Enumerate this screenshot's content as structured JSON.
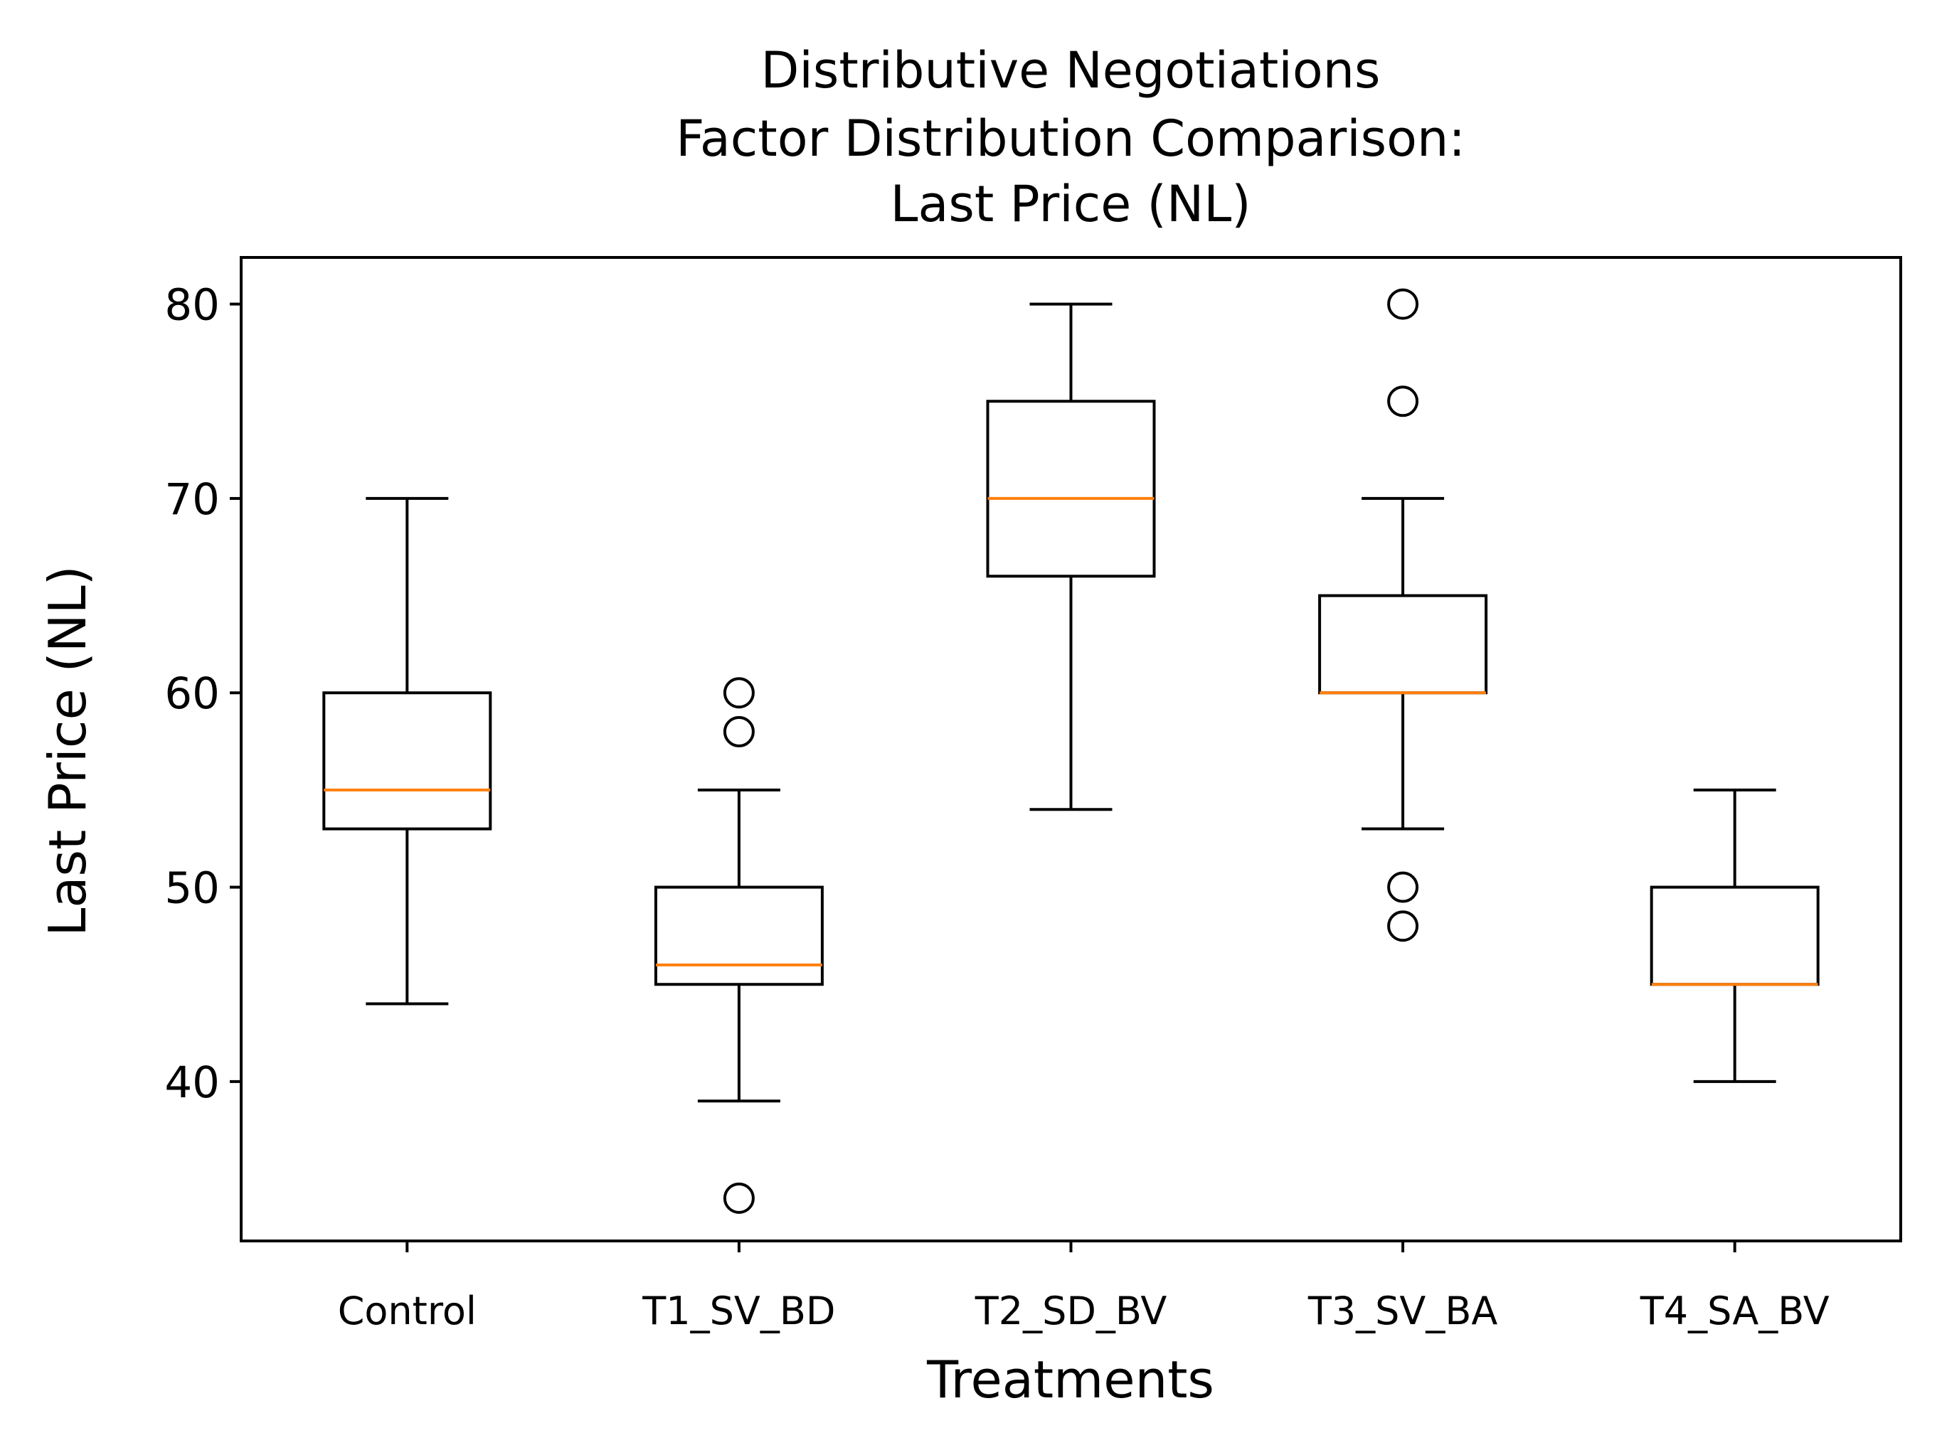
{
  "chart_data": {
    "type": "boxplot",
    "title_lines": [
      "Distributive Negotiations",
      "Factor Distribution Comparison:",
      "Last Price (NL)"
    ],
    "xlabel": "Treatments",
    "ylabel": "Last Price (NL)",
    "ylim": [
      31.8,
      82.4
    ],
    "yticks": [
      40,
      50,
      60,
      70,
      80
    ],
    "categories": [
      "Control",
      "T1_SV_BD",
      "T2_SD_BV",
      "T3_SV_BA",
      "T4_SA_BV"
    ],
    "boxes": [
      {
        "name": "Control",
        "whisker_low": 44,
        "q1": 53,
        "median": 55,
        "q3": 60,
        "whisker_high": 70,
        "outliers": []
      },
      {
        "name": "T1_SV_BD",
        "whisker_low": 39,
        "q1": 45,
        "median": 46,
        "q3": 50,
        "whisker_high": 55,
        "outliers": [
          34,
          58,
          60
        ]
      },
      {
        "name": "T2_SD_BV",
        "whisker_low": 54,
        "q1": 66,
        "median": 70,
        "q3": 75,
        "whisker_high": 80,
        "outliers": []
      },
      {
        "name": "T3_SV_BA",
        "whisker_low": 53,
        "q1": 60,
        "median": 60,
        "q3": 65,
        "whisker_high": 70,
        "outliers": [
          48,
          50,
          75,
          80
        ]
      },
      {
        "name": "T4_SA_BV",
        "whisker_low": 40,
        "q1": 45,
        "median": 45,
        "q3": 50,
        "whisker_high": 55,
        "outliers": []
      }
    ],
    "grid": false,
    "colors": {
      "box": "#000000",
      "median": "#ff7f0e",
      "outlier": "#000000"
    }
  }
}
